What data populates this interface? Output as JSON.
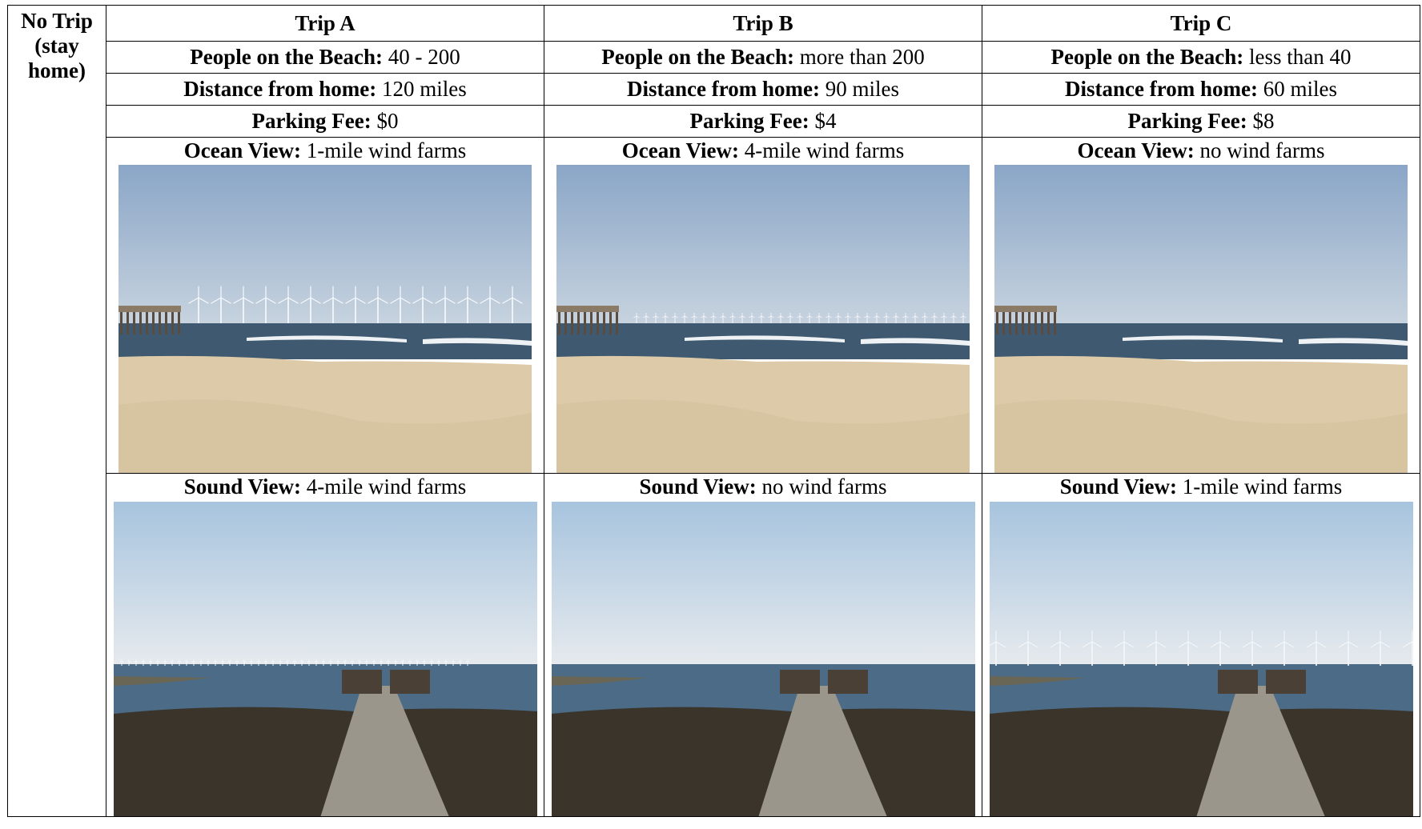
{
  "no_trip": "No Trip (stay home)",
  "trips": [
    {
      "name": "Trip A",
      "people": {
        "label": "People on the Beach:",
        "value": "40 - 200"
      },
      "distance": {
        "label": "Distance from home:",
        "value": "120 miles"
      },
      "parking": {
        "label": "Parking Fee:",
        "value": "$0"
      },
      "ocean": {
        "label": "Ocean View:",
        "value": "1-mile wind farms"
      },
      "sound": {
        "label": "Sound View:",
        "value": "4-mile wind farms"
      }
    },
    {
      "name": "Trip B",
      "people": {
        "label": "People on the Beach:",
        "value": "more than 200"
      },
      "distance": {
        "label": "Distance from home:",
        "value": "90 miles"
      },
      "parking": {
        "label": "Parking Fee:",
        "value": "$4"
      },
      "ocean": {
        "label": "Ocean View:",
        "value": "4-mile wind farms"
      },
      "sound": {
        "label": "Sound View:",
        "value": "no wind farms"
      }
    },
    {
      "name": "Trip C",
      "people": {
        "label": "People on the Beach:",
        "value": "less than 40"
      },
      "distance": {
        "label": "Distance from home:",
        "value": "60 miles"
      },
      "parking": {
        "label": "Parking Fee:",
        "value": "$8"
      },
      "ocean": {
        "label": "Ocean View:",
        "value": "no wind farms"
      },
      "sound": {
        "label": "Sound View:",
        "value": "1-mile wind farms"
      }
    }
  ]
}
